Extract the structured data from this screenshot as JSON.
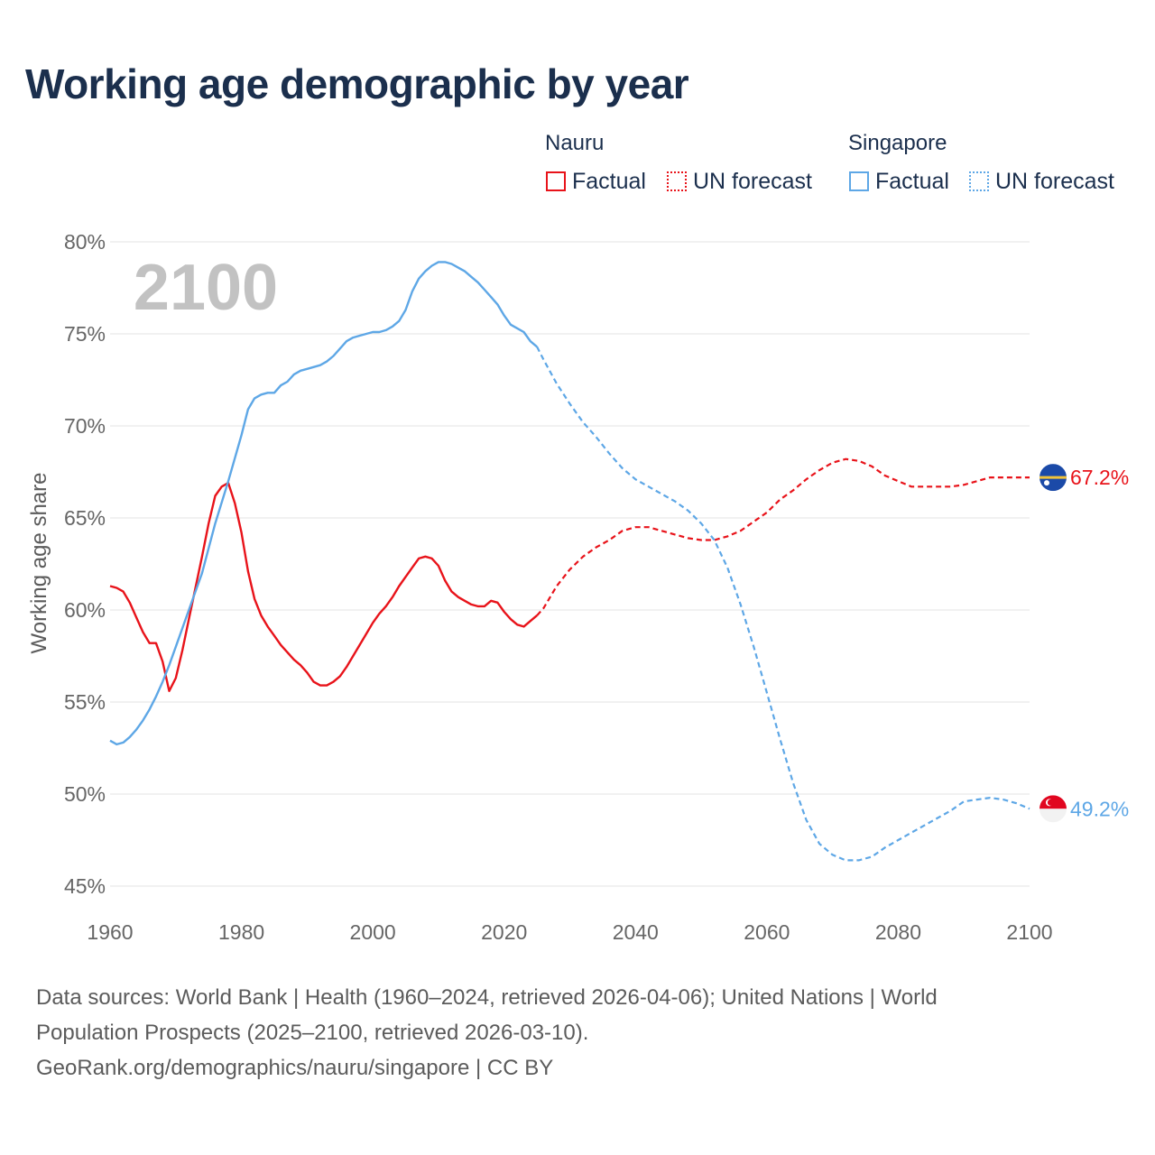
{
  "title": "Working age demographic by year",
  "legend": {
    "groups": [
      {
        "name": "Nauru",
        "color": "#e8131a",
        "items": [
          {
            "label": "Factual",
            "style": "solid"
          },
          {
            "label": "UN forecast",
            "style": "dotted"
          }
        ]
      },
      {
        "name": "Singapore",
        "color": "#5ea7e6",
        "items": [
          {
            "label": "Factual",
            "style": "solid"
          },
          {
            "label": "UN forecast",
            "style": "dotted"
          }
        ]
      }
    ]
  },
  "chart_data": {
    "type": "line",
    "ylabel": "Working age share",
    "xlabel": "",
    "ylim": [
      45,
      80
    ],
    "xlim": [
      1960,
      2100
    ],
    "yticks": [
      "45%",
      "50%",
      "55%",
      "60%",
      "65%",
      "70%",
      "75%",
      "80%"
    ],
    "xticks": [
      "1960",
      "1980",
      "2000",
      "2020",
      "2040",
      "2060",
      "2080",
      "2100"
    ],
    "year_watermark": "2100",
    "factual_until": 2025,
    "series": [
      {
        "name": "Nauru",
        "color": "#e8131a",
        "end_label": "67.2%",
        "flag": "nauru",
        "points": [
          [
            1960,
            61.3
          ],
          [
            1961,
            61.2
          ],
          [
            1962,
            61.0
          ],
          [
            1963,
            60.4
          ],
          [
            1964,
            59.6
          ],
          [
            1965,
            58.8
          ],
          [
            1966,
            58.2
          ],
          [
            1967,
            58.2
          ],
          [
            1968,
            57.2
          ],
          [
            1969,
            55.6
          ],
          [
            1970,
            56.3
          ],
          [
            1971,
            57.8
          ],
          [
            1972,
            59.5
          ],
          [
            1973,
            61.2
          ],
          [
            1974,
            62.9
          ],
          [
            1975,
            64.7
          ],
          [
            1976,
            66.2
          ],
          [
            1977,
            66.7
          ],
          [
            1978,
            66.9
          ],
          [
            1979,
            65.8
          ],
          [
            1980,
            64.2
          ],
          [
            1981,
            62.1
          ],
          [
            1982,
            60.6
          ],
          [
            1983,
            59.7
          ],
          [
            1984,
            59.1
          ],
          [
            1985,
            58.6
          ],
          [
            1986,
            58.1
          ],
          [
            1987,
            57.7
          ],
          [
            1988,
            57.3
          ],
          [
            1989,
            57.0
          ],
          [
            1990,
            56.6
          ],
          [
            1991,
            56.1
          ],
          [
            1992,
            55.9
          ],
          [
            1993,
            55.9
          ],
          [
            1994,
            56.1
          ],
          [
            1995,
            56.4
          ],
          [
            1996,
            56.9
          ],
          [
            1997,
            57.5
          ],
          [
            1998,
            58.1
          ],
          [
            1999,
            58.7
          ],
          [
            2000,
            59.3
          ],
          [
            2001,
            59.8
          ],
          [
            2002,
            60.2
          ],
          [
            2003,
            60.7
          ],
          [
            2004,
            61.3
          ],
          [
            2005,
            61.8
          ],
          [
            2006,
            62.3
          ],
          [
            2007,
            62.8
          ],
          [
            2008,
            62.9
          ],
          [
            2009,
            62.8
          ],
          [
            2010,
            62.4
          ],
          [
            2011,
            61.6
          ],
          [
            2012,
            61.0
          ],
          [
            2013,
            60.7
          ],
          [
            2014,
            60.5
          ],
          [
            2015,
            60.3
          ],
          [
            2016,
            60.2
          ],
          [
            2017,
            60.2
          ],
          [
            2018,
            60.5
          ],
          [
            2019,
            60.4
          ],
          [
            2020,
            59.9
          ],
          [
            2021,
            59.5
          ],
          [
            2022,
            59.2
          ],
          [
            2023,
            59.1
          ],
          [
            2024,
            59.4
          ],
          [
            2025,
            59.7
          ],
          [
            2026,
            60.1
          ],
          [
            2027,
            60.7
          ],
          [
            2028,
            61.3
          ],
          [
            2030,
            62.2
          ],
          [
            2032,
            62.9
          ],
          [
            2034,
            63.4
          ],
          [
            2036,
            63.8
          ],
          [
            2038,
            64.3
          ],
          [
            2040,
            64.5
          ],
          [
            2042,
            64.5
          ],
          [
            2044,
            64.3
          ],
          [
            2046,
            64.1
          ],
          [
            2048,
            63.9
          ],
          [
            2050,
            63.8
          ],
          [
            2052,
            63.8
          ],
          [
            2054,
            64.0
          ],
          [
            2056,
            64.3
          ],
          [
            2058,
            64.8
          ],
          [
            2060,
            65.3
          ],
          [
            2062,
            66.0
          ],
          [
            2064,
            66.5
          ],
          [
            2066,
            67.1
          ],
          [
            2068,
            67.6
          ],
          [
            2070,
            68.0
          ],
          [
            2072,
            68.2
          ],
          [
            2074,
            68.1
          ],
          [
            2076,
            67.8
          ],
          [
            2078,
            67.3
          ],
          [
            2080,
            67.0
          ],
          [
            2082,
            66.7
          ],
          [
            2084,
            66.7
          ],
          [
            2086,
            66.7
          ],
          [
            2088,
            66.7
          ],
          [
            2090,
            66.8
          ],
          [
            2092,
            67.0
          ],
          [
            2094,
            67.2
          ],
          [
            2096,
            67.2
          ],
          [
            2098,
            67.2
          ],
          [
            2100,
            67.2
          ]
        ]
      },
      {
        "name": "Singapore",
        "color": "#5ea7e6",
        "end_label": "49.2%",
        "flag": "singapore",
        "points": [
          [
            1960,
            52.9
          ],
          [
            1961,
            52.7
          ],
          [
            1962,
            52.8
          ],
          [
            1963,
            53.1
          ],
          [
            1964,
            53.5
          ],
          [
            1965,
            54.0
          ],
          [
            1966,
            54.6
          ],
          [
            1967,
            55.3
          ],
          [
            1968,
            56.1
          ],
          [
            1969,
            57.0
          ],
          [
            1970,
            58.0
          ],
          [
            1972,
            60.0
          ],
          [
            1974,
            62.0
          ],
          [
            1976,
            64.7
          ],
          [
            1978,
            67.0
          ],
          [
            1980,
            69.5
          ],
          [
            1981,
            70.9
          ],
          [
            1982,
            71.5
          ],
          [
            1983,
            71.7
          ],
          [
            1984,
            71.8
          ],
          [
            1985,
            71.8
          ],
          [
            1986,
            72.2
          ],
          [
            1987,
            72.4
          ],
          [
            1988,
            72.8
          ],
          [
            1989,
            73.0
          ],
          [
            1990,
            73.1
          ],
          [
            1992,
            73.3
          ],
          [
            1993,
            73.5
          ],
          [
            1994,
            73.8
          ],
          [
            1995,
            74.2
          ],
          [
            1996,
            74.6
          ],
          [
            1997,
            74.8
          ],
          [
            1998,
            74.9
          ],
          [
            1999,
            75.0
          ],
          [
            2000,
            75.1
          ],
          [
            2001,
            75.1
          ],
          [
            2002,
            75.2
          ],
          [
            2003,
            75.4
          ],
          [
            2004,
            75.7
          ],
          [
            2005,
            76.3
          ],
          [
            2006,
            77.3
          ],
          [
            2007,
            78.0
          ],
          [
            2008,
            78.4
          ],
          [
            2009,
            78.7
          ],
          [
            2010,
            78.9
          ],
          [
            2011,
            78.9
          ],
          [
            2012,
            78.8
          ],
          [
            2013,
            78.6
          ],
          [
            2014,
            78.4
          ],
          [
            2015,
            78.1
          ],
          [
            2016,
            77.8
          ],
          [
            2017,
            77.4
          ],
          [
            2018,
            77.0
          ],
          [
            2019,
            76.6
          ],
          [
            2020,
            76.0
          ],
          [
            2021,
            75.5
          ],
          [
            2022,
            75.3
          ],
          [
            2023,
            75.1
          ],
          [
            2024,
            74.6
          ],
          [
            2025,
            74.3
          ],
          [
            2026,
            73.6
          ],
          [
            2028,
            72.3
          ],
          [
            2030,
            71.2
          ],
          [
            2032,
            70.2
          ],
          [
            2034,
            69.4
          ],
          [
            2036,
            68.5
          ],
          [
            2038,
            67.7
          ],
          [
            2040,
            67.1
          ],
          [
            2042,
            66.7
          ],
          [
            2044,
            66.3
          ],
          [
            2046,
            65.9
          ],
          [
            2048,
            65.4
          ],
          [
            2050,
            64.7
          ],
          [
            2052,
            63.8
          ],
          [
            2054,
            62.3
          ],
          [
            2056,
            60.3
          ],
          [
            2058,
            58.0
          ],
          [
            2060,
            55.5
          ],
          [
            2062,
            53.0
          ],
          [
            2064,
            50.6
          ],
          [
            2066,
            48.6
          ],
          [
            2068,
            47.3
          ],
          [
            2070,
            46.7
          ],
          [
            2072,
            46.4
          ],
          [
            2074,
            46.4
          ],
          [
            2076,
            46.6
          ],
          [
            2078,
            47.1
          ],
          [
            2080,
            47.5
          ],
          [
            2082,
            47.9
          ],
          [
            2084,
            48.3
          ],
          [
            2086,
            48.7
          ],
          [
            2088,
            49.1
          ],
          [
            2090,
            49.6
          ],
          [
            2092,
            49.7
          ],
          [
            2094,
            49.8
          ],
          [
            2096,
            49.7
          ],
          [
            2098,
            49.5
          ],
          [
            2100,
            49.2
          ]
        ]
      }
    ]
  },
  "sources": {
    "line1": "Data sources: World Bank | Health (1960–2024, retrieved 2026-04-06); United Nations | World",
    "line2": "Population Prospects (2025–2100, retrieved 2026-03-10).",
    "line3": "GeoRank.org/demographics/nauru/singapore | CC BY"
  }
}
